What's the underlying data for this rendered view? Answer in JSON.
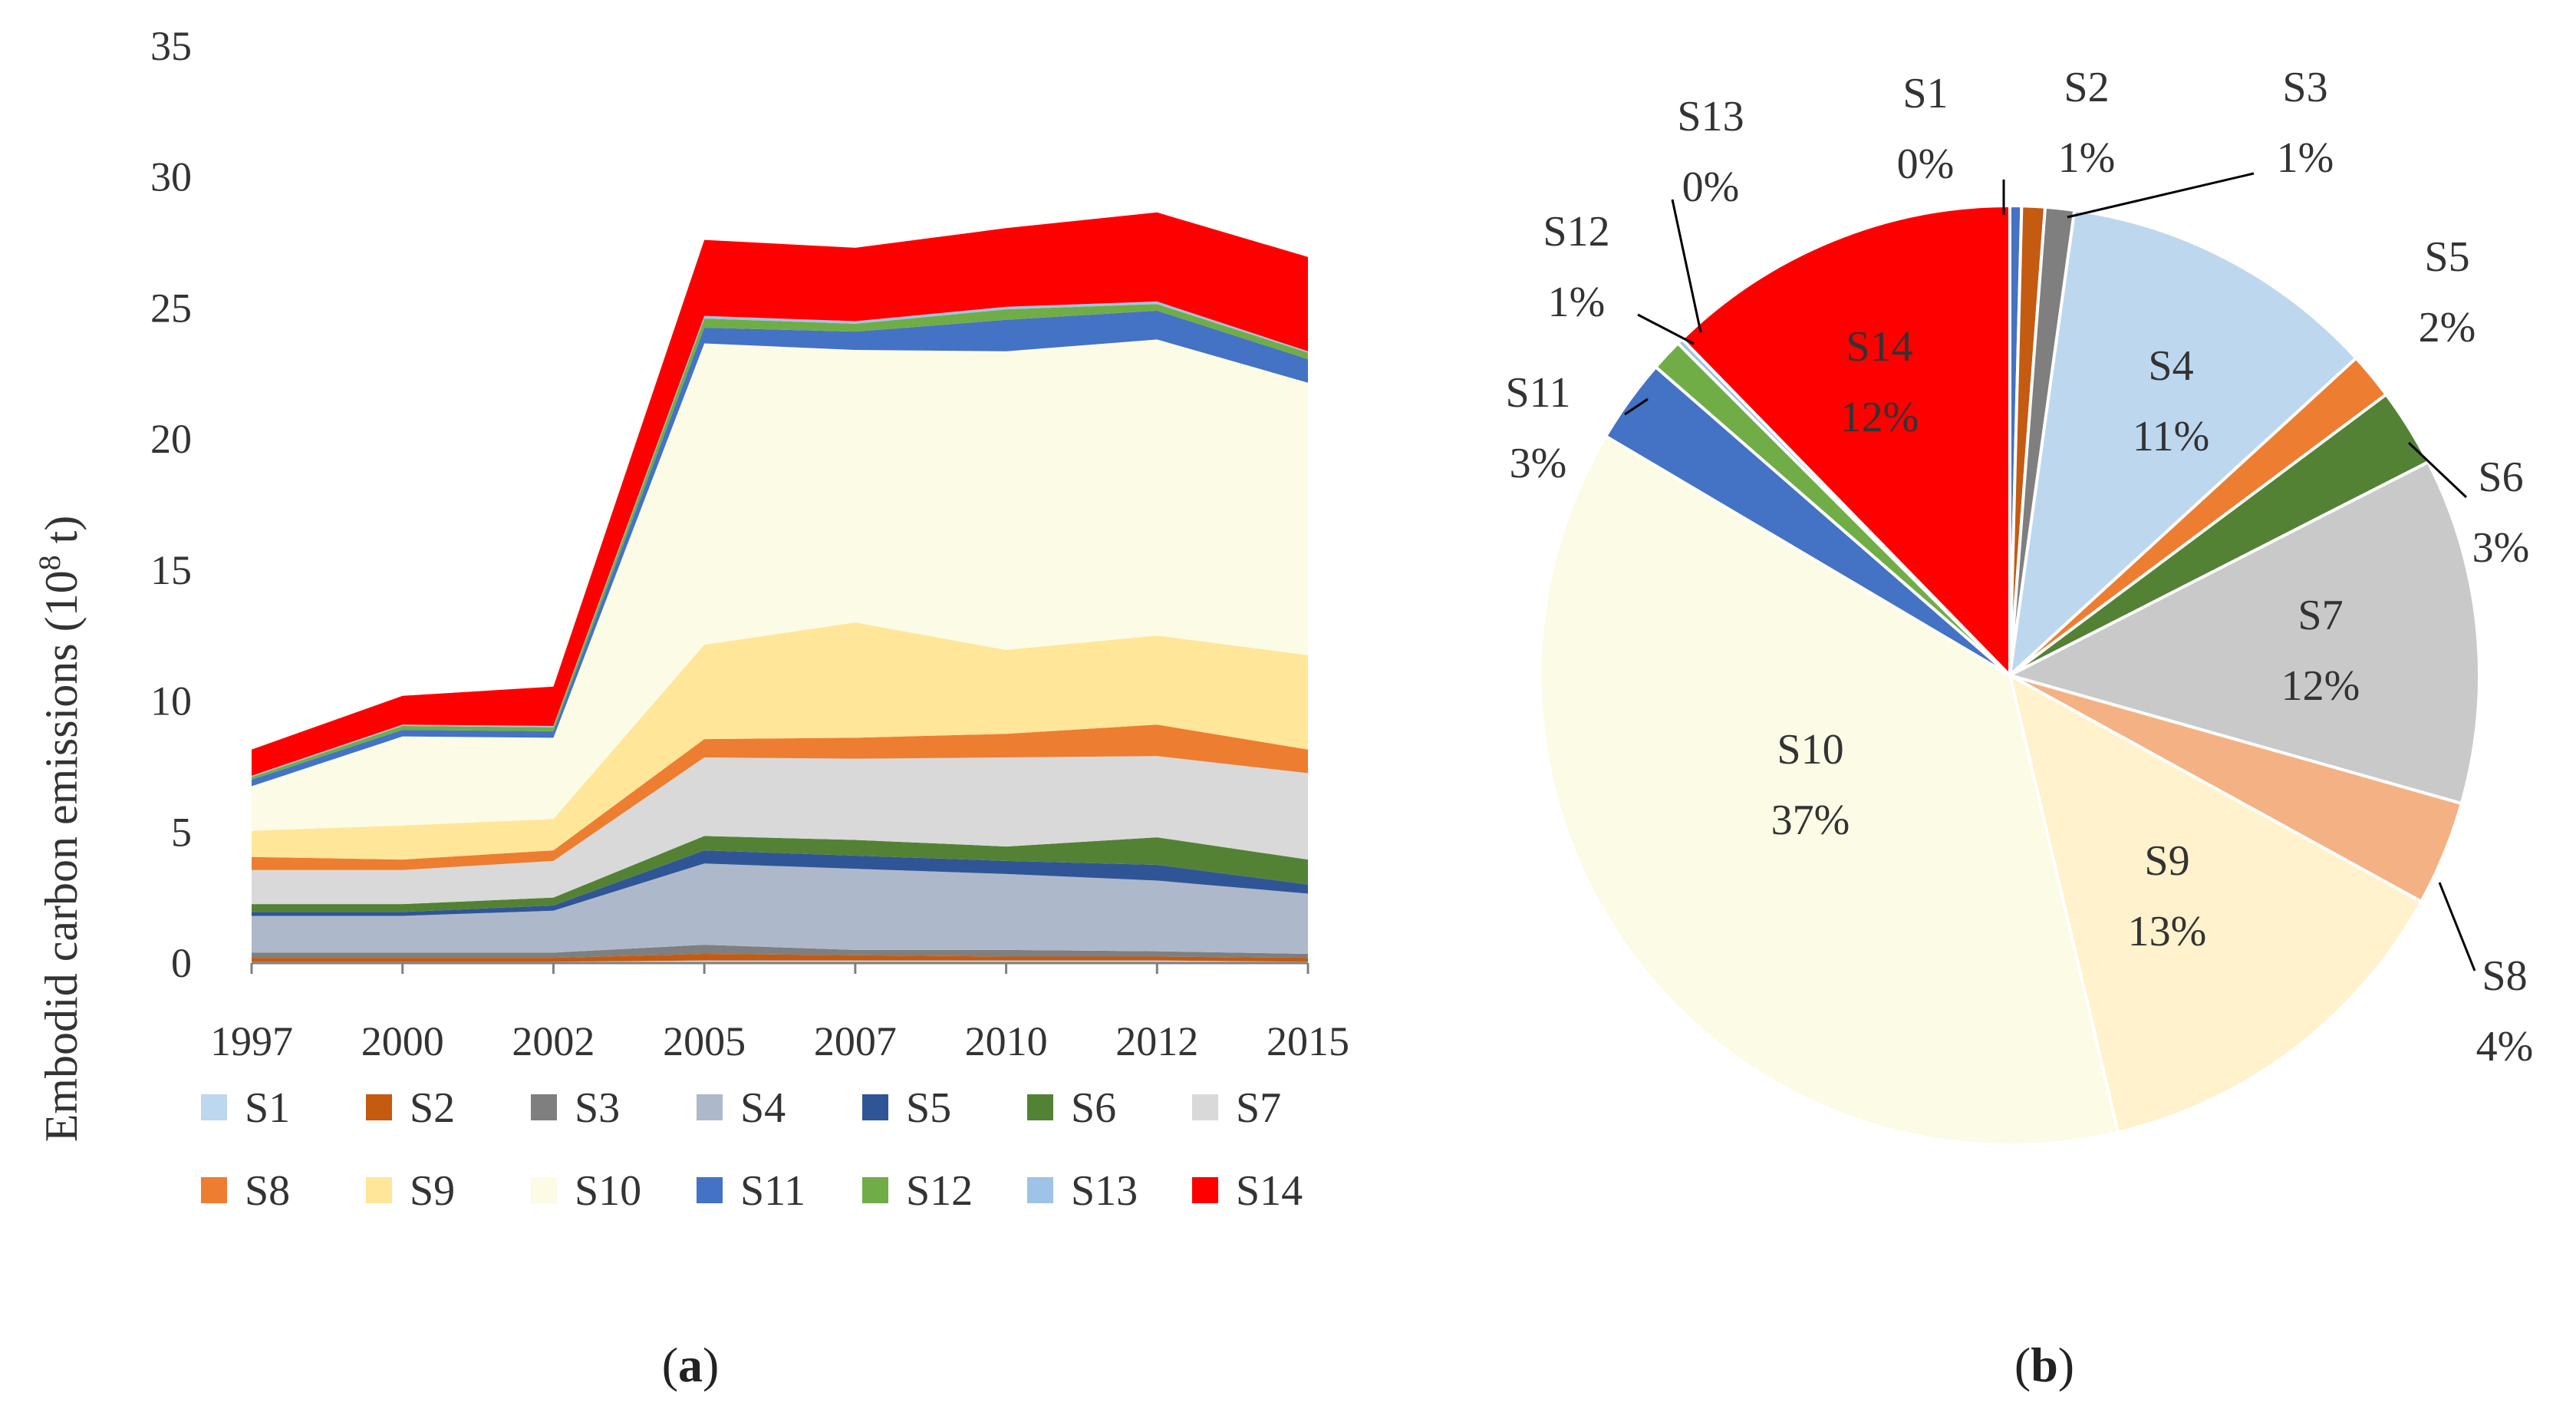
{
  "chart_data": [
    {
      "type": "area",
      "stacked": true,
      "caption_open": "(",
      "caption_letter": "a",
      "caption_close": ")",
      "ylabel_main": "Embodid carbon emissions (10",
      "ylabel_sup": "8",
      "ylabel_tail": " t)",
      "ylim": [
        0,
        35
      ],
      "yticks": [
        "0",
        "5",
        "10",
        "15",
        "20",
        "25",
        "30",
        "35"
      ],
      "categories": [
        "1997",
        "2000",
        "2002",
        "2005",
        "2007",
        "2010",
        "2012",
        "2015"
      ],
      "series": [
        {
          "name": "S1",
          "color": "#bdd7ee",
          "values": [
            0.05,
            0.05,
            0.05,
            0.1,
            0.1,
            0.1,
            0.1,
            0.05
          ]
        },
        {
          "name": "S2",
          "color": "#c55a11",
          "values": [
            0.15,
            0.15,
            0.15,
            0.25,
            0.2,
            0.15,
            0.15,
            0.15
          ]
        },
        {
          "name": "S3",
          "color": "#7f7f7f",
          "values": [
            0.2,
            0.2,
            0.2,
            0.35,
            0.2,
            0.25,
            0.2,
            0.15
          ]
        },
        {
          "name": "S4",
          "color": "#adb9ca",
          "values": [
            1.4,
            1.4,
            1.6,
            3.1,
            3.1,
            2.9,
            2.7,
            2.3
          ]
        },
        {
          "name": "S5",
          "color": "#2f5597",
          "values": [
            0.15,
            0.15,
            0.2,
            0.5,
            0.5,
            0.5,
            0.6,
            0.35
          ]
        },
        {
          "name": "S6",
          "color": "#548235",
          "values": [
            0.3,
            0.3,
            0.3,
            0.55,
            0.6,
            0.55,
            1.05,
            0.95
          ]
        },
        {
          "name": "S7",
          "color": "#d9d9d9",
          "values": [
            1.3,
            1.3,
            1.4,
            3.0,
            3.1,
            3.4,
            3.1,
            3.3
          ]
        },
        {
          "name": "S8",
          "color": "#ed7d31",
          "values": [
            0.5,
            0.4,
            0.4,
            0.7,
            0.8,
            0.9,
            1.2,
            0.9
          ]
        },
        {
          "name": "S9",
          "color": "#ffe699",
          "values": [
            1.0,
            1.3,
            1.2,
            3.6,
            4.4,
            3.2,
            3.4,
            3.6
          ]
        },
        {
          "name": "S10",
          "color": "#fbfbe6",
          "values": [
            1.7,
            3.4,
            3.1,
            11.5,
            10.4,
            11.4,
            11.3,
            10.4
          ]
        },
        {
          "name": "S11",
          "color": "#4472c4",
          "values": [
            0.25,
            0.25,
            0.25,
            0.6,
            0.7,
            1.2,
            1.1,
            0.9
          ]
        },
        {
          "name": "S12",
          "color": "#70ad47",
          "values": [
            0.1,
            0.15,
            0.15,
            0.35,
            0.3,
            0.4,
            0.25,
            0.25
          ]
        },
        {
          "name": "S13",
          "color": "#9dc3e6",
          "values": [
            0.05,
            0.05,
            0.05,
            0.1,
            0.1,
            0.1,
            0.1,
            0.05
          ]
        },
        {
          "name": "S14",
          "color": "#ff0000",
          "values": [
            1.0,
            1.1,
            1.5,
            2.9,
            2.8,
            3.0,
            3.4,
            3.6
          ]
        }
      ],
      "legend_placement": "bottom"
    },
    {
      "type": "pie",
      "caption_open": "(",
      "caption_letter": "b",
      "caption_close": ")",
      "slices": [
        {
          "name": "S1",
          "pct": "0%",
          "value": 0.4,
          "color": "#4472c4"
        },
        {
          "name": "S2",
          "pct": "1%",
          "value": 0.8,
          "color": "#c55a11"
        },
        {
          "name": "S3",
          "pct": "1%",
          "value": 1.0,
          "color": "#7f7f7f"
        },
        {
          "name": "S4",
          "pct": "11%",
          "value": 11.0,
          "color": "#bdd7ee"
        },
        {
          "name": "S5",
          "pct": "2%",
          "value": 1.6,
          "color": "#ed7d31"
        },
        {
          "name": "S6",
          "pct": "3%",
          "value": 2.7,
          "color": "#548235"
        },
        {
          "name": "S7",
          "pct": "12%",
          "value": 11.9,
          "color": "#c9c9c9"
        },
        {
          "name": "S8",
          "pct": "4%",
          "value": 3.6,
          "color": "#f4b183"
        },
        {
          "name": "S9",
          "pct": "13%",
          "value": 13.3,
          "color": "#fff2cc"
        },
        {
          "name": "S10",
          "pct": "37%",
          "value": 37.2,
          "color": "#fbfbe6"
        },
        {
          "name": "S11",
          "pct": "3%",
          "value": 2.9,
          "color": "#4472c4"
        },
        {
          "name": "S12",
          "pct": "1%",
          "value": 1.1,
          "color": "#70ad47"
        },
        {
          "name": "S13",
          "pct": "0%",
          "value": 0.2,
          "color": "#9dc3e6"
        },
        {
          "name": "S14",
          "pct": "12%",
          "value": 12.3,
          "color": "#ff0000"
        }
      ]
    }
  ]
}
